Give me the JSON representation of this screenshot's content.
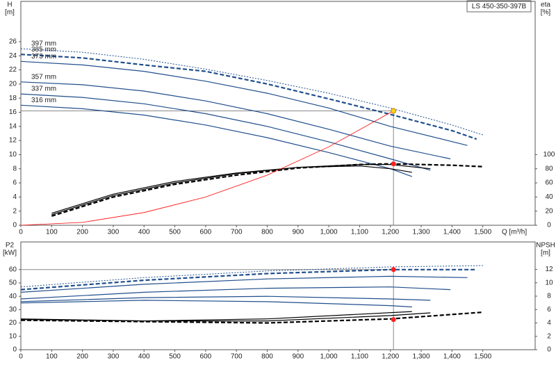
{
  "model_label": "LS 450-350-397B",
  "chart_data": [
    {
      "type": "line",
      "y_label": "H",
      "y_unit": "[m]",
      "y2_label": "eta",
      "y2_unit": "[%]",
      "x_label": "Q [m³/h]",
      "xlim": [
        0,
        1670
      ],
      "xticks": [
        0,
        100,
        200,
        300,
        400,
        500,
        600,
        700,
        800,
        900,
        {
          "value": 1000,
          "label": "1,000"
        },
        {
          "value": 1100,
          "label": "1,100"
        },
        {
          "value": 1200,
          "label": "1,200"
        },
        {
          "value": 1300,
          "label": "1,300"
        },
        {
          "value": 1400,
          "label": "1,400"
        },
        {
          "value": 1500,
          "label": "1,500"
        }
      ],
      "ylim": [
        0,
        31.7
      ],
      "yticks": [
        0,
        2,
        4,
        6,
        8,
        10,
        12,
        14,
        16,
        18,
        20,
        22,
        24,
        26
      ],
      "y2lim": [
        0,
        317
      ],
      "y2ticks": [
        0,
        20,
        40,
        60,
        80,
        100
      ],
      "series": [
        {
          "name": "397 mm",
          "color": "#1f4e8c",
          "style": "dotted",
          "x": [
            0,
            200,
            400,
            600,
            800,
            1000,
            1200,
            1400,
            1500
          ],
          "values": [
            25.0,
            24.5,
            23.5,
            22.1,
            20.5,
            18.7,
            16.6,
            14.2,
            12.8
          ]
        },
        {
          "name": "385 mm",
          "color": "#1f4e8c",
          "style": "dashed",
          "x": [
            0,
            200,
            400,
            600,
            800,
            1000,
            1200,
            1400,
            1480
          ],
          "values": [
            24.2,
            23.7,
            22.7,
            21.8,
            20.0,
            17.9,
            15.7,
            13.4,
            12.2
          ]
        },
        {
          "name": "373 mm",
          "color": "#1f4e8c",
          "style": "solid",
          "x": [
            0,
            200,
            400,
            600,
            800,
            1000,
            1200,
            1450
          ],
          "values": [
            23.2,
            22.7,
            21.8,
            20.4,
            18.7,
            16.6,
            14.0,
            11.3
          ]
        },
        {
          "name": "357 mm",
          "color": "#1f4e8c",
          "style": "solid",
          "x": [
            0,
            200,
            400,
            600,
            800,
            1000,
            1200,
            1395
          ],
          "values": [
            20.3,
            19.9,
            19.0,
            17.6,
            15.8,
            13.6,
            11.2,
            9.4
          ]
        },
        {
          "name": "337 mm",
          "color": "#1f4e8c",
          "style": "solid",
          "x": [
            0,
            200,
            400,
            600,
            800,
            1000,
            1200,
            1330
          ],
          "values": [
            18.6,
            18.1,
            17.2,
            15.8,
            14.0,
            11.8,
            9.4,
            7.8
          ]
        },
        {
          "name": "316 mm",
          "color": "#1f4e8c",
          "style": "solid",
          "x": [
            0,
            200,
            400,
            600,
            800,
            1000,
            1200,
            1270
          ],
          "values": [
            17.0,
            16.5,
            15.6,
            14.2,
            12.4,
            10.3,
            8.0,
            6.9
          ]
        },
        {
          "color": "#000000",
          "style": "dashed",
          "axis": "y2",
          "x": [
            100,
            300,
            500,
            700,
            900,
            1100,
            1200,
            1400,
            1500
          ],
          "values": [
            13,
            40,
            58,
            71,
            81,
            86,
            87,
            85,
            83
          ]
        },
        {
          "color": "#000000",
          "style": "solid",
          "axis": "y2",
          "x": [
            100,
            300,
            500,
            700,
            900,
            1100,
            1200,
            1330
          ],
          "values": [
            15,
            42,
            60,
            73,
            82,
            86,
            86,
            80
          ]
        },
        {
          "color": "#000000",
          "style": "solid",
          "axis": "y2",
          "x": [
            100,
            300,
            500,
            700,
            900,
            1100,
            1200,
            1270
          ],
          "values": [
            17,
            44,
            62,
            74,
            82,
            84,
            80,
            75
          ]
        },
        {
          "color": "#ff0000",
          "style": "thin",
          "x": [
            0,
            200,
            400,
            600,
            800,
            1000,
            1210
          ],
          "values": [
            0,
            0.4,
            1.8,
            4.0,
            7.1,
            11.1,
            16.2
          ]
        }
      ],
      "duty_point": {
        "x": 1210,
        "y": 16.2,
        "y2": 87
      }
    },
    {
      "type": "line",
      "y_label": "P2",
      "y_unit": "[kW]",
      "y2_label": "NPSH",
      "y2_unit": "[m]",
      "xlim": [
        0,
        1670
      ],
      "xticks": [
        0,
        100,
        200,
        300,
        400,
        500,
        600,
        700,
        800,
        900,
        {
          "value": 1000,
          "label": "1,000"
        },
        {
          "value": 1100,
          "label": "1,100"
        },
        {
          "value": 1200,
          "label": "1,200"
        },
        {
          "value": 1300,
          "label": "1,300"
        },
        {
          "value": 1400,
          "label": "1,400"
        },
        {
          "value": 1500,
          "label": "1,500"
        }
      ],
      "ylim": [
        0,
        80.7
      ],
      "yticks": [
        0,
        10,
        20,
        30,
        40,
        50,
        60
      ],
      "y2lim": [
        0,
        16.1
      ],
      "y2ticks": [
        0,
        2,
        4,
        6,
        8,
        10,
        12
      ],
      "series": [
        {
          "color": "#1f4e8c",
          "style": "dotted",
          "x": [
            0,
            400,
            800,
            1200,
            1500
          ],
          "values": [
            47,
            54,
            59,
            62,
            63
          ]
        },
        {
          "color": "#1f4e8c",
          "style": "dashed",
          "x": [
            0,
            400,
            800,
            1200,
            1480
          ],
          "values": [
            45,
            52,
            57,
            60,
            60
          ]
        },
        {
          "color": "#1f4e8c",
          "style": "solid",
          "x": [
            0,
            400,
            800,
            1200,
            1450
          ],
          "values": [
            43,
            49,
            53,
            55,
            54
          ]
        },
        {
          "color": "#1f4e8c",
          "style": "solid",
          "x": [
            0,
            400,
            800,
            1200,
            1395
          ],
          "values": [
            38,
            43,
            46,
            47,
            45
          ]
        },
        {
          "color": "#1f4e8c",
          "style": "solid",
          "x": [
            0,
            400,
            800,
            1200,
            1330
          ],
          "values": [
            36,
            39,
            40,
            38,
            37
          ]
        },
        {
          "color": "#1f4e8c",
          "style": "solid",
          "x": [
            0,
            400,
            800,
            1200,
            1270
          ],
          "values": [
            35,
            37,
            36,
            33,
            32
          ]
        },
        {
          "color": "#000000",
          "style": "dashed",
          "axis": "y2",
          "x": [
            0,
            400,
            800,
            1200,
            1500
          ],
          "values": [
            4.4,
            4.2,
            4.0,
            4.6,
            5.6
          ]
        },
        {
          "color": "#000000",
          "style": "solid",
          "axis": "y2",
          "x": [
            0,
            400,
            800,
            1200,
            1330
          ],
          "values": [
            4.5,
            4.3,
            4.3,
            5.1,
            5.5
          ]
        },
        {
          "color": "#000000",
          "style": "solid",
          "axis": "y2",
          "x": [
            0,
            400,
            800,
            1270
          ],
          "values": [
            4.6,
            4.3,
            4.6,
            5.7
          ]
        }
      ],
      "duty_point": {
        "x": 1210,
        "y": 60,
        "y2": 4.5
      }
    }
  ]
}
